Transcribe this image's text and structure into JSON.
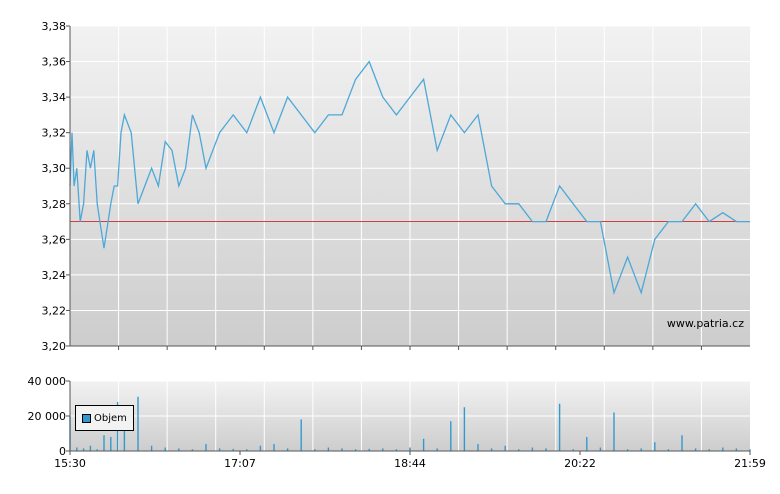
{
  "watermark": "www.patria.cz",
  "chart_data": [
    {
      "type": "line",
      "name": "price",
      "ylim": [
        3.2,
        3.38
      ],
      "yticks": [
        "3,20",
        "3,22",
        "3,24",
        "3,26",
        "3,28",
        "3,30",
        "3,32",
        "3,34",
        "3,36",
        "3,38"
      ],
      "xticks": [
        "15:30",
        "17:07",
        "18:44",
        "20:22",
        "21:59"
      ],
      "reference_line": 3.27,
      "line_color": "#4da8d8",
      "reference_color": "#d04040",
      "x": [
        0,
        0.3,
        0.6,
        1,
        1.5,
        2,
        2.5,
        3,
        3.5,
        4,
        5,
        6,
        6.5,
        7,
        7.5,
        8,
        9,
        10,
        11,
        12,
        13,
        14,
        15,
        16,
        17,
        18,
        19,
        20,
        22,
        24,
        26,
        28,
        30,
        32,
        34,
        36,
        38,
        40,
        42,
        44,
        46,
        48,
        50,
        52,
        54,
        56,
        58,
        60,
        62,
        64,
        66,
        68,
        70,
        72,
        74,
        76,
        78,
        80,
        82,
        84,
        86,
        88,
        90,
        92,
        94,
        96,
        98,
        100
      ],
      "values": [
        3.29,
        3.32,
        3.29,
        3.3,
        3.27,
        3.28,
        3.31,
        3.3,
        3.31,
        3.28,
        3.255,
        3.28,
        3.29,
        3.29,
        3.32,
        3.33,
        3.32,
        3.28,
        3.29,
        3.3,
        3.29,
        3.315,
        3.31,
        3.29,
        3.3,
        3.33,
        3.32,
        3.3,
        3.32,
        3.33,
        3.32,
        3.34,
        3.32,
        3.34,
        3.33,
        3.32,
        3.33,
        3.33,
        3.35,
        3.36,
        3.34,
        3.33,
        3.34,
        3.35,
        3.31,
        3.33,
        3.32,
        3.33,
        3.29,
        3.28,
        3.28,
        3.27,
        3.27,
        3.29,
        3.28,
        3.27,
        3.27,
        3.23,
        3.25,
        3.23,
        3.26,
        3.27,
        3.27,
        3.28,
        3.27,
        3.275,
        3.27,
        3.27
      ]
    },
    {
      "type": "bar",
      "name": "volume",
      "series_label": "Objem",
      "ylim": [
        0,
        40000
      ],
      "yticks": [
        "0",
        "20 000",
        "40 000"
      ],
      "xticks": [
        "15:30",
        "17:07",
        "18:44",
        "20:22",
        "21:59"
      ],
      "bar_color": "#3399cc",
      "x": [
        0,
        1,
        2,
        3,
        4,
        5,
        6,
        7,
        8,
        10,
        12,
        14,
        16,
        18,
        20,
        22,
        24,
        26,
        28,
        30,
        32,
        34,
        36,
        38,
        40,
        42,
        44,
        46,
        48,
        50,
        52,
        54,
        56,
        58,
        60,
        62,
        64,
        66,
        68,
        70,
        72,
        74,
        76,
        78,
        80,
        82,
        84,
        86,
        88,
        90,
        92,
        94,
        96,
        98,
        100
      ],
      "values": [
        20000,
        2000,
        1500,
        3000,
        1000,
        9000,
        8000,
        28000,
        22000,
        31000,
        3000,
        2000,
        1500,
        1000,
        4000,
        1500,
        1200,
        1000,
        3000,
        4000,
        1500,
        18000,
        1000,
        2000,
        1500,
        1000,
        1200,
        1500,
        1000,
        2000,
        7000,
        1500,
        17000,
        25000,
        4000,
        1500,
        3000,
        1000,
        2000,
        1500,
        27000,
        1000,
        8000,
        2000,
        22000,
        1000,
        1500,
        5000,
        1000,
        9000,
        1500,
        1000,
        2000,
        1500,
        1000
      ]
    }
  ]
}
